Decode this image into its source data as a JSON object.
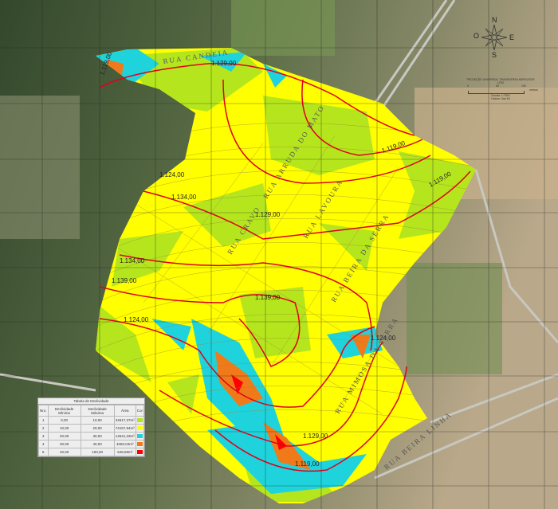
{
  "legend": {
    "title": "Tabela de Declividade",
    "headers": [
      "Nro.",
      "Declividade Mínima",
      "Declividade Máxima",
      "Área",
      "Cor"
    ],
    "rows": [
      {
        "nro": "1",
        "min": "0,00",
        "max": "10,00",
        "area": "34617,37m²",
        "color": "#b5e61d"
      },
      {
        "nro": "2",
        "min": "10,00",
        "max": "20,00",
        "area": "74157,94m²",
        "color": "#ffff00"
      },
      {
        "nro": "3",
        "min": "20,00",
        "max": "30,00",
        "area": "14641,33m²",
        "color": "#1fd3dc"
      },
      {
        "nro": "4",
        "min": "30,00",
        "max": "40,00",
        "area": "4050,04m²",
        "color": "#f07a1a"
      },
      {
        "nro": "5",
        "min": "40,00",
        "max": "100,00",
        "area": "548,58m²",
        "color": "#ff0000"
      }
    ]
  },
  "compass": {
    "n": "N",
    "s": "S",
    "e": "E",
    "w": "O"
  },
  "scale": {
    "projection": "PROJEÇÃO UNIVERSAL TRANSVERSA MERCATOR",
    "zone": "UTM",
    "ticks": [
      "0",
      "50",
      "100"
    ],
    "unit": "metros",
    "scale_text": "Escala: 1:7500",
    "datum": "Datum: Sad 69"
  },
  "contours": [
    "1.119,00",
    "1.124,00",
    "1.129,00",
    "1.134,00",
    "1.139,00"
  ],
  "streets": [
    "RUA CANDEIA",
    "RUA CRAVO",
    "RUA ARRUDA DO MATO",
    "RUA LAVOURA",
    "RUA BEIRA DA SERRA",
    "RUA MIMOSA DA SERRA",
    "RUA BEIRA LINHA"
  ],
  "colors": {
    "slope_1": "#b5e61d",
    "slope_2": "#ffff00",
    "slope_3": "#1fd3dc",
    "slope_4": "#f07a1a",
    "slope_5": "#ff0000",
    "contour": "#e0001a"
  }
}
